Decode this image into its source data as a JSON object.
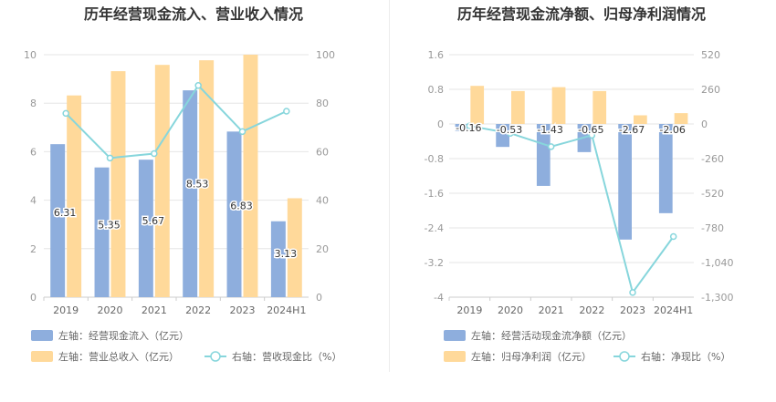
{
  "chart_data": [
    {
      "type": "bar",
      "title": "历年经营现金流入、营业收入情况",
      "categories": [
        "2019",
        "2020",
        "2021",
        "2022",
        "2023",
        "2024H1"
      ],
      "left_axis": {
        "ticks": [
          "0",
          "2",
          "4",
          "6",
          "8",
          "10"
        ],
        "ylim": [
          0,
          10
        ]
      },
      "right_axis": {
        "ticks": [
          "0",
          "20",
          "40",
          "60",
          "80",
          "100"
        ],
        "ylim": [
          0,
          100
        ]
      },
      "series": [
        {
          "name": "左轴：经营现金流入（亿元）",
          "type": "bar",
          "axis": "left",
          "color": "#8eaedd",
          "values": [
            6.31,
            5.35,
            5.67,
            8.53,
            6.83,
            3.13
          ],
          "labels": [
            "6.31",
            "5.35",
            "5.67",
            "8.53",
            "6.83",
            "3.13"
          ]
        },
        {
          "name": "左轴：营业总收入（亿元）",
          "type": "bar",
          "axis": "left",
          "color": "#ffd99a",
          "values": [
            8.32,
            9.32,
            9.58,
            9.77,
            10.0,
            4.08
          ]
        },
        {
          "name": "右轴：营收现金比（%）",
          "type": "line",
          "axis": "right",
          "color": "#87d6dc",
          "values": [
            75.8,
            57.4,
            59.2,
            87.3,
            68.3,
            76.7
          ]
        }
      ],
      "grid": true,
      "legend_position": "bottom-left"
    },
    {
      "type": "bar",
      "title": "历年经营现金流净额、归母净利润情况",
      "categories": [
        "2019",
        "2020",
        "2021",
        "2022",
        "2023",
        "2024H1"
      ],
      "left_axis": {
        "ticks": [
          "1.6",
          "0.8",
          "0",
          "-0.8",
          "-1.6",
          "-2.4",
          "-3.2",
          "-4"
        ],
        "ylim": [
          -4,
          1.6
        ]
      },
      "right_axis": {
        "ticks": [
          "520",
          "260",
          "0",
          "-260",
          "-520",
          "-780",
          "-1,040",
          "-1,300"
        ],
        "ylim": [
          -1300,
          520
        ]
      },
      "series": [
        {
          "name": "左轴：经营活动现金流净额（亿元）",
          "type": "bar",
          "axis": "left",
          "color": "#8eaedd",
          "values": [
            -0.16,
            -0.53,
            -1.43,
            -0.65,
            -2.67,
            -2.06
          ],
          "labels": [
            "-0.16",
            "-0.53",
            "-1.43",
            "-0.65",
            "-2.67",
            "-2.06"
          ]
        },
        {
          "name": "左轴：归母净利润（亿元）",
          "type": "bar",
          "axis": "left",
          "color": "#ffd99a",
          "values": [
            0.88,
            0.76,
            0.85,
            0.76,
            0.2,
            0.25
          ]
        },
        {
          "name": "右轴：净现比（%）",
          "type": "line",
          "axis": "right",
          "color": "#87d6dc",
          "values": [
            -15,
            -70,
            -170,
            -85,
            -1265,
            -845
          ]
        }
      ],
      "grid": true,
      "legend_position": "bottom-left"
    }
  ]
}
